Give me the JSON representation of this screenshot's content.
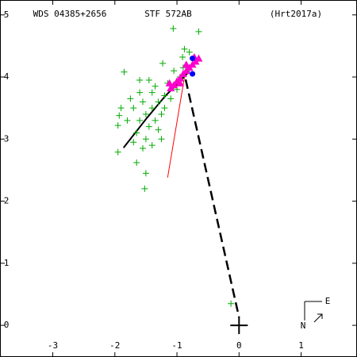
{
  "chart_data": {
    "type": "scatter",
    "title": "WDS 04385+2656",
    "subtitle": "STF 572AB",
    "reference": "(Hrt2017a)",
    "compass": {
      "north": "N",
      "east": "E"
    },
    "xlim": [
      -3.85,
      1.9
    ],
    "ylim": [
      -0.51,
      5.24
    ],
    "xticks": [
      -3,
      -2,
      -1,
      0,
      1
    ],
    "yticks": [
      0,
      1,
      2,
      3,
      4,
      5
    ],
    "series": [
      {
        "color": "#00aa00",
        "marker": "plus",
        "x": [
          -1.06,
          -0.65,
          -1.85,
          -1.52,
          -1.95,
          -1.93,
          -1.95,
          -0.13,
          -1.65,
          -1.23,
          -0.88,
          -0.91,
          -1.3,
          -1.4,
          -1.5,
          -1.6,
          -1.2,
          -1.35,
          -1.55,
          -1.7,
          -1.45,
          -1.25,
          -1.65,
          -1.8,
          -1.5,
          -1.4,
          -1.15,
          -1.1,
          -1.6,
          -1.75,
          -1.3,
          -1.55,
          -1.35,
          -1.2,
          -1.45,
          -1.9,
          -1.25,
          -1.0,
          -0.95,
          -1.05,
          -0.9,
          -0.8,
          -1.5,
          -1.7,
          -1.4,
          -1.6
        ],
        "values": [
          4.78,
          4.73,
          4.08,
          2.2,
          2.79,
          3.38,
          3.22,
          0.35,
          2.62,
          4.22,
          4.45,
          4.32,
          3.6,
          3.5,
          3.4,
          3.3,
          3.7,
          3.85,
          3.6,
          3.5,
          3.2,
          3.4,
          3.1,
          3.3,
          3.0,
          3.75,
          3.9,
          3.65,
          3.75,
          3.65,
          3.15,
          2.85,
          3.3,
          3.5,
          3.95,
          3.5,
          3.0,
          3.8,
          4.0,
          4.1,
          4.15,
          4.4,
          2.45,
          2.95,
          2.9,
          3.95
        ]
      },
      {
        "color": "#ff00cc",
        "marker": "triangle",
        "x": [
          -1.1,
          -1.05,
          -1.0,
          -0.95,
          -0.9,
          -0.85,
          -0.8,
          -0.75,
          -0.7,
          -0.65,
          -1.12,
          -0.72,
          -0.85,
          -0.95
        ],
        "values": [
          3.82,
          3.87,
          3.93,
          3.98,
          4.05,
          4.1,
          4.15,
          4.2,
          4.25,
          4.3,
          3.9,
          4.32,
          4.2,
          3.9
        ]
      },
      {
        "color": "#0000ff",
        "marker": "circle",
        "x": [
          -0.75,
          -0.75
        ],
        "values": [
          4.3,
          4.05
        ]
      },
      {
        "color": "#000000",
        "marker": "line",
        "x": [
          -1.86,
          -1.5,
          -1.2,
          -0.8
        ],
        "values": [
          2.86,
          3.32,
          3.68,
          4.09
        ]
      },
      {
        "color": "#ff0000",
        "marker": "thin",
        "x": [
          -1.15,
          -0.88
        ],
        "values": [
          2.38,
          3.99
        ]
      },
      {
        "color": "#000000",
        "marker": "dashed",
        "x": [
          -0.86,
          0
        ],
        "values": [
          3.96,
          0.13
        ]
      }
    ]
  }
}
